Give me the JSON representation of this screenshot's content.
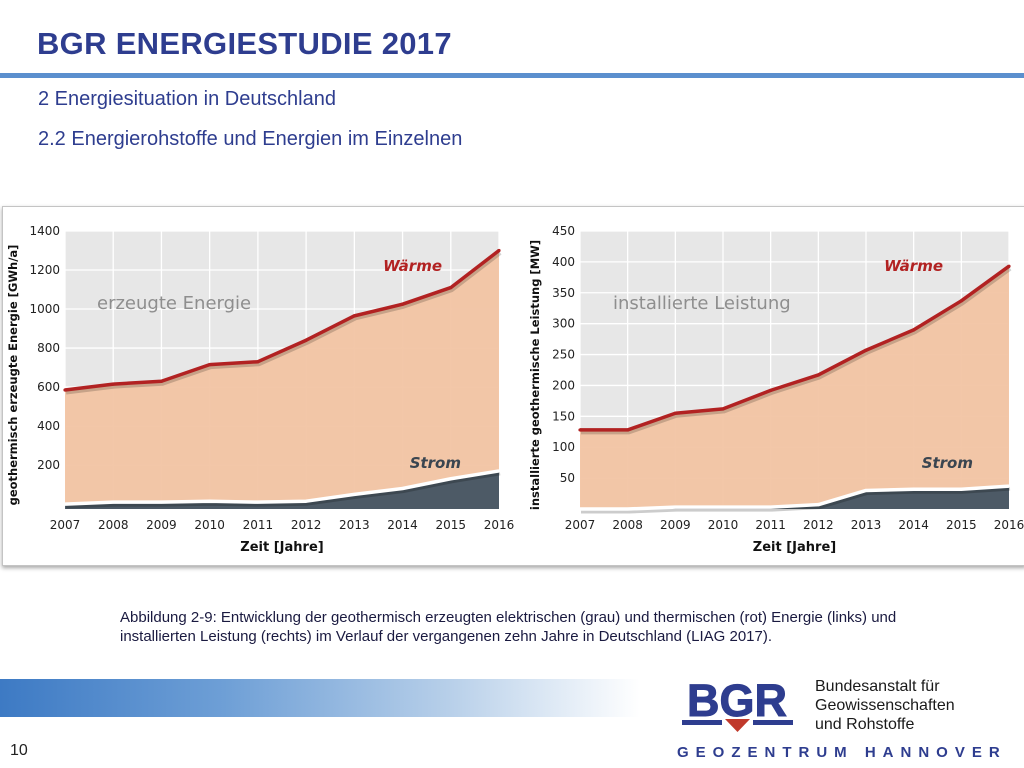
{
  "header": {
    "title": "BGR ENERGIESTUDIE 2017",
    "subtitle1": "2 Energiesituation in Deutschland",
    "subtitle2": "2.2 Energierohstoffe und Energien im Einzelnen"
  },
  "caption": "Abbildung 2-9: Entwicklung der geothermisch erzeugten elektrischen (grau) und thermischen (rot) Energie (links) und installierten Leistung (rechts) im Verlauf der vergangenen zehn Jahre in Deutschland (LIAG 2017).",
  "footer": {
    "logo_text": "BGR",
    "org_line1": "Bundesanstalt für",
    "org_line2": "Geowissenschaften",
    "org_line3": "und Rohstoffe",
    "geozentrum_left": "GEOZENTRUM",
    "geozentrum_right": "HANNOVER",
    "page_number": "10"
  },
  "colors": {
    "title": "#2e3d8f",
    "heat_line": "#b22222",
    "heat_fill": "#f2c4a3",
    "power_line": "#ffffff",
    "power_fill": "#4d5a66",
    "plot_bg": "#e7e7e7"
  },
  "chart_data": [
    {
      "type": "area",
      "inner_label": "erzeugte Energie",
      "xlabel": "Zeit [Jahre]",
      "ylabel": "geothermisch erzeugte Energie [GWh/a]",
      "ylim": [
        -25,
        1400
      ],
      "yticks": [
        200,
        400,
        600,
        800,
        1000,
        1200,
        1400
      ],
      "grid": true,
      "x": [
        "2007",
        "2008",
        "2009",
        "2010",
        "2011",
        "2012",
        "2013",
        "2014",
        "2015",
        "2016"
      ],
      "series": [
        {
          "name": "Wärme",
          "values": [
            585,
            615,
            630,
            715,
            730,
            840,
            965,
            1025,
            1110,
            1300
          ]
        },
        {
          "name": "Strom",
          "values": [
            0,
            10,
            10,
            15,
            10,
            15,
            50,
            80,
            130,
            170
          ]
        }
      ]
    },
    {
      "type": "area",
      "inner_label": "installierte Leistung",
      "xlabel": "Zeit [Jahre]",
      "ylabel": "installierte geothermische Leistung [MW]",
      "ylim": [
        0,
        450
      ],
      "yticks": [
        50,
        100,
        150,
        200,
        250,
        300,
        350,
        400,
        450
      ],
      "grid": true,
      "x": [
        "2007",
        "2008",
        "2009",
        "2010",
        "2011",
        "2012",
        "2013",
        "2014",
        "2015",
        "2016"
      ],
      "series": [
        {
          "name": "Wärme",
          "values": [
            128,
            128,
            155,
            162,
            192,
            217,
            257,
            290,
            337,
            393
          ]
        },
        {
          "name": "Strom",
          "values": [
            0,
            0,
            3,
            3,
            3,
            7,
            30,
            32,
            32,
            37
          ]
        }
      ]
    }
  ]
}
